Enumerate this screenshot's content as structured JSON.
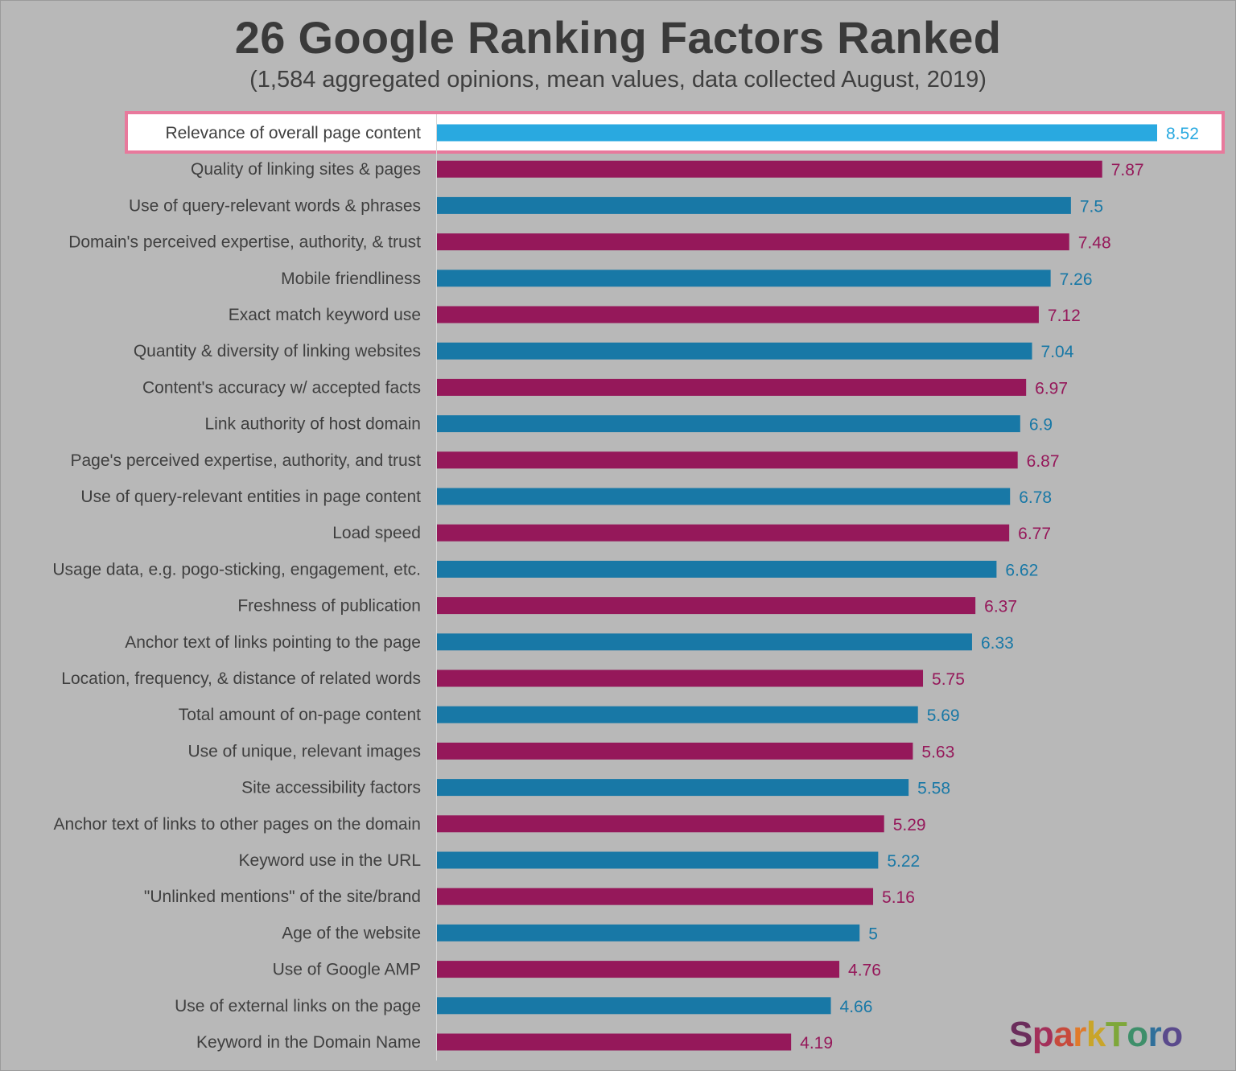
{
  "title": "26 Google Ranking Factors Ranked",
  "subtitle": "(1,584 aggregated opinions, mean values, data collected August, 2019)",
  "logo_text": "SparkToro",
  "colors": {
    "background": "#b8b8b8",
    "highlight_bar": "#29a9e0",
    "blue_bar": "#1878a6",
    "magenta_bar": "#95185a",
    "highlight_border": "#e8799c",
    "text": "#3f3f3f"
  },
  "chart_data": {
    "type": "bar",
    "orientation": "horizontal",
    "title": "26 Google Ranking Factors Ranked",
    "subtitle": "(1,584 aggregated opinions, mean values, data collected August, 2019)",
    "categories": [
      "Relevance of overall page content",
      "Quality of linking sites & pages",
      "Use of query-relevant words & phrases",
      "Domain's perceived expertise, authority, & trust",
      "Mobile friendliness",
      "Exact match keyword use",
      "Quantity & diversity of linking websites",
      "Content's accuracy w/ accepted facts",
      "Link authority of host domain",
      "Page's perceived expertise, authority, and trust",
      "Use of query-relevant entities in page content",
      "Load speed",
      "Usage data, e.g. pogo-sticking, engagement, etc.",
      "Freshness of publication",
      "Anchor text of links pointing to the page",
      "Location, frequency, & distance of related words",
      "Total amount of on-page content",
      "Use of unique, relevant images",
      "Site accessibility factors",
      "Anchor text of links to other pages on the domain",
      "Keyword use in the URL",
      "\"Unlinked mentions\" of the site/brand",
      "Age of the website",
      "Use of Google AMP",
      "Use of external links on the page",
      "Keyword in the Domain Name"
    ],
    "values": [
      8.52,
      7.87,
      7.5,
      7.48,
      7.26,
      7.12,
      7.04,
      6.97,
      6.9,
      6.87,
      6.78,
      6.77,
      6.62,
      6.37,
      6.33,
      5.75,
      5.69,
      5.63,
      5.58,
      5.29,
      5.22,
      5.16,
      5,
      4.76,
      4.66,
      4.19
    ],
    "value_labels": [
      "8.52",
      "7.87",
      "7.5",
      "7.48",
      "7.26",
      "7.12",
      "7.04",
      "6.97",
      "6.9",
      "6.87",
      "6.78",
      "6.77",
      "6.62",
      "6.37",
      "6.33",
      "5.75",
      "5.69",
      "5.63",
      "5.58",
      "5.29",
      "5.22",
      "5.16",
      "5",
      "4.76",
      "4.66",
      "4.19"
    ],
    "highlighted_index": 0,
    "bar_colors": "alternating blue / magenta, first bar highlighted light blue",
    "xlim": [
      0,
      8.52
    ],
    "grid": false,
    "legend": "none"
  }
}
